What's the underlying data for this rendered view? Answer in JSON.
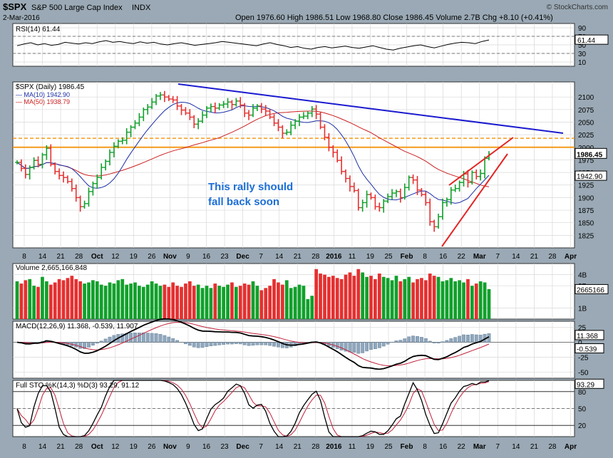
{
  "header": {
    "symbol": "$SPX",
    "name": "S&P 500 Large Cap Index",
    "exchange": "INDX",
    "date": "2-Mar-2016",
    "quote": "Open 1976.60  High 1986.51  Low 1968.80  Close 1986.45  Volume 2.7B  Chg +8.10 (+0.41%)",
    "watermark": "© StockCharts.com",
    "quote_fields": [
      {
        "label": "Open",
        "value": "1976.60"
      },
      {
        "label": "High",
        "value": "1986.51"
      },
      {
        "label": "Low",
        "value": "1968.80"
      },
      {
        "label": "Close",
        "value": "1986.45"
      },
      {
        "label": "Volume",
        "value": "2.7B"
      },
      {
        "label": "Chg",
        "value": "+8.10 (+0.41%)"
      }
    ]
  },
  "annotation": {
    "line1": "This rally should",
    "line2": "fall back soon"
  },
  "colors": {
    "bg": "#9aa9b5",
    "panel": "#ffffff",
    "up": "#11a02b",
    "down": "#e53030",
    "ma10": "#1c2fa8",
    "ma50": "#cc2020",
    "trend_blue": "#1a1ad0",
    "wedge": "#e32424",
    "hline": "#f59a1a",
    "text_blue": "#1b6ed6"
  },
  "x_axis": {
    "labels": [
      "8",
      "14",
      "21",
      "28",
      "Oct",
      "12",
      "19",
      "26",
      "Nov",
      "9",
      "16",
      "23",
      "Dec",
      "7",
      "14",
      "21",
      "28",
      "2016",
      "11",
      "19",
      "25",
      "Feb",
      "8",
      "16",
      "22",
      "Mar",
      "7",
      "14",
      "21",
      "28",
      "Apr"
    ],
    "bold": [
      "Oct",
      "Nov",
      "Dec",
      "2016",
      "Feb",
      "Mar",
      "Apr"
    ]
  },
  "chart_data": [
    {
      "type": "line",
      "title": "RSI(14) 61.44",
      "series": [
        {
          "name": "RSI(14)",
          "last": 61.44,
          "values": [
            48,
            52,
            55,
            50,
            53,
            49,
            51,
            56,
            54,
            52,
            55,
            53,
            57,
            60,
            56,
            58,
            55,
            53,
            57,
            54,
            56,
            52,
            50,
            53,
            55,
            52,
            49,
            51,
            53,
            55,
            58,
            56,
            54,
            52,
            50,
            48,
            52,
            55,
            51,
            48,
            44,
            46,
            42,
            40,
            44,
            46,
            43,
            45,
            47,
            44,
            42,
            45,
            48,
            44,
            40,
            38,
            42,
            45,
            48,
            50,
            46,
            43,
            47,
            51,
            54,
            56,
            55,
            53,
            58,
            61.44
          ]
        }
      ],
      "ylim": [
        0,
        100
      ],
      "ticks": [
        "90",
        "70",
        "50",
        "30",
        "10"
      ],
      "value_label": "61.44"
    },
    {
      "type": "candlestick",
      "title": "$SPX (Daily) 1986.45",
      "legend": [
        {
          "name": "MA(10) 1942.90"
        },
        {
          "name": "MA(50) 1938.79"
        }
      ],
      "ylim": [
        1800,
        2130
      ],
      "ticks": [
        "2100",
        "2075",
        "2050",
        "2025",
        "2000",
        "1975",
        "1950",
        "1925",
        "1900",
        "1875",
        "1850",
        "1825"
      ],
      "close": [
        1970,
        1958,
        1946,
        1960,
        1974,
        1966,
        1985,
        1998,
        1966,
        1952,
        1944,
        1940,
        1932,
        1918,
        1900,
        1882,
        1888,
        1912,
        1928,
        1940,
        1960,
        1972,
        1990,
        2002,
        2012,
        2014,
        2030,
        2040,
        2048,
        2060,
        2075,
        2080,
        2090,
        2102,
        2104,
        2100,
        2096,
        2094,
        2082,
        2074,
        2068,
        2060,
        2046,
        2052,
        2064,
        2078,
        2081,
        2078,
        2084,
        2086,
        2090,
        2085,
        2092,
        2084,
        2068,
        2064,
        2078,
        2082,
        2076,
        2072,
        2060,
        2048,
        2040,
        2028,
        2030,
        2044,
        2052,
        2060,
        2062,
        2068,
        2076,
        2066,
        2040,
        2020,
        2000,
        1990,
        1974,
        1952,
        1938,
        1922,
        1914,
        1880,
        1890,
        1906,
        1900,
        1882,
        1880,
        1893,
        1902,
        1909,
        1912,
        1900,
        1920,
        1940,
        1935,
        1915,
        1906,
        1890,
        1852,
        1842,
        1862,
        1890,
        1896,
        1915,
        1918,
        1930,
        1947,
        1930,
        1950,
        1942,
        1948,
        1978,
        1986.45
      ],
      "ma10_last": 1942.9,
      "ma50_last": 1938.79,
      "hlines": [
        2018,
        2000
      ],
      "price_labels": [
        "1986.45",
        "1942.90"
      ]
    },
    {
      "type": "bar",
      "title": "Volume 2,665,166,848",
      "ylim": [
        0,
        5
      ],
      "ticks": [
        "4B",
        "3B",
        "1B"
      ],
      "value_label": "2665166",
      "values": [
        3.4,
        3.2,
        3.5,
        3.6,
        3.0,
        2.9,
        3.8,
        3.4,
        3.1,
        3.3,
        3.6,
        3.5,
        3.7,
        3.9,
        3.6,
        3.4,
        3.2,
        3.3,
        3.5,
        3.4,
        3.1,
        3.0,
        3.3,
        3.2,
        3.5,
        3.6,
        3.1,
        3.2,
        3.3,
        3.0,
        2.9,
        3.1,
        3.4,
        3.2,
        3.0,
        3.1,
        2.9,
        3.3,
        3.0,
        2.9,
        3.2,
        3.4,
        3.0,
        3.1,
        2.8,
        3.0,
        2.8,
        3.2,
        3.0,
        2.9,
        3.1,
        3.3,
        2.9,
        3.0,
        3.2,
        3.1,
        3.4,
        3.0,
        2.6,
        2.8,
        3.0,
        3.6,
        3.3,
        3.1,
        3.5,
        2.8,
        2.9,
        3.1,
        3.0,
        1.8,
        2.1,
        4.5,
        4.1,
        4.0,
        3.8,
        3.9,
        3.7,
        3.6,
        4.0,
        4.2,
        3.9,
        4.5,
        4.2,
        3.8,
        3.9,
        3.6,
        4.1,
        3.8,
        3.7,
        3.5,
        3.9,
        3.4,
        3.6,
        3.8,
        3.3,
        3.6,
        3.7,
        3.5,
        4.1,
        3.9,
        3.8,
        3.4,
        3.5,
        3.7,
        3.4,
        3.5,
        3.3,
        3.6,
        3.0,
        3.2,
        3.4,
        3.3,
        2.7
      ]
    },
    {
      "type": "line",
      "title": "MACD(12,26,9) 11.368, -0.539, 11.907",
      "ylim": [
        -60,
        35
      ],
      "ticks": [
        "25",
        "0",
        "-25",
        "-50"
      ],
      "value_labels": [
        "11.368",
        "-0.539"
      ]
    },
    {
      "type": "line",
      "title": "Full STO %K(14,3) %D(3) 93.29, 91.12",
      "ylim": [
        0,
        100
      ],
      "ticks": [
        "80",
        "50",
        "20"
      ],
      "value_label": "93.29"
    }
  ]
}
